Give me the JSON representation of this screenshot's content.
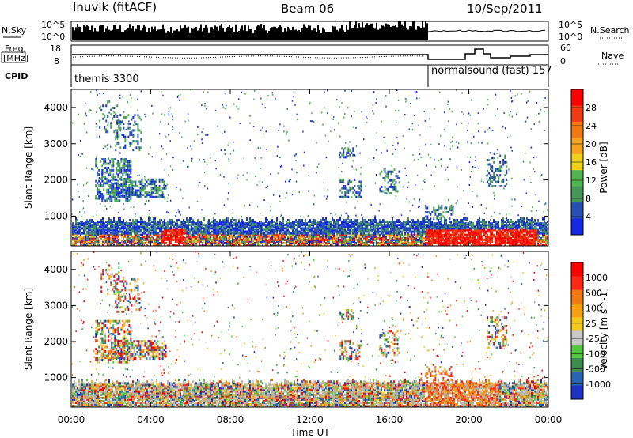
{
  "header": {
    "station": "Inuvik (fitACF)",
    "beam": "Beam 06",
    "date": "10/Sep/2011"
  },
  "top_panels": {
    "nsky_label": "N.Sky",
    "nsky_tick_top": "10^5",
    "nsky_tick_bottom": "10^0",
    "nsearch_tick_top": "10^5",
    "nsearch_tick_bottom": "10^0",
    "nsearch_label": "N.Search",
    "freq_label_line1": "Freq.",
    "freq_label_line2": "[MHz]",
    "freq_tick_top": "18",
    "freq_tick_bottom": "8",
    "nave_tick_top": "60",
    "nave_tick_bottom": "0",
    "nave_label": "Nave",
    "cpid_label": "CPID",
    "cpid_segment_1": "themis 3300",
    "cpid_segment_2": "normalsound (fast) 157"
  },
  "colors": {
    "power_scale": [
      "#1428e6",
      "#2850b4",
      "#46965a",
      "#50b450",
      "#f0d21e",
      "#f5a01e",
      "#f07814",
      "#f03c14",
      "#ff0000"
    ],
    "velocity_scale": [
      "#1e32c8",
      "#2864b4",
      "#3c8c50",
      "#50c83c",
      "#c8c8c8",
      "#f0c81e",
      "#f5a014",
      "#f07814",
      "#ff2814",
      "#ff0000"
    ],
    "ground_scatter": "#b4b4a0"
  },
  "chart_data": [
    {
      "type": "heatmap",
      "panel": "power",
      "ylabel": "Slant Range [km]",
      "yticks": [
        "1000",
        "2000",
        "3000",
        "4000"
      ],
      "ylim": [
        180,
        4500
      ],
      "xlim": [
        "00:00",
        "24:00"
      ],
      "colorbar_label": "Power [dB]",
      "colorbar_ticks": [
        "4",
        "8",
        "12",
        "16",
        "20",
        "24",
        "28"
      ],
      "colorbar_range": [
        0,
        32
      ]
    },
    {
      "type": "heatmap",
      "panel": "velocity",
      "ylabel": "Slant Range [km]",
      "yticks": [
        "1000",
        "2000",
        "3000",
        "4000"
      ],
      "ylim": [
        180,
        4500
      ],
      "xlabel": "Time UT",
      "xticks": [
        "00:00",
        "04:00",
        "08:00",
        "12:00",
        "16:00",
        "20:00",
        "00:00"
      ],
      "colorbar_label": "Velocity [m s^-1]",
      "colorbar_ticks": [
        "1000",
        "500",
        "100",
        "25",
        "-25",
        "-100",
        "-500",
        "-1000"
      ]
    }
  ]
}
